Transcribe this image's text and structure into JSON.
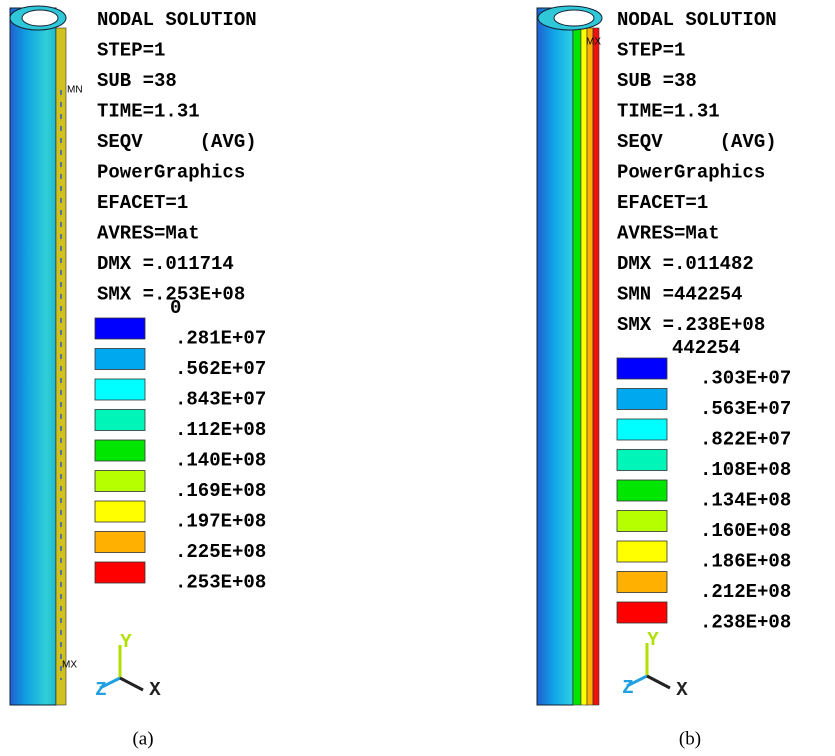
{
  "panels": [
    {
      "caption": "(a)",
      "info": [
        "NODAL SOLUTION",
        "STEP=1",
        "SUB =38",
        "TIME=1.31",
        "SEQV     (AVG)",
        "PowerGraphics",
        "EFACET=1",
        "AVRES=Mat",
        "DMX =.011714",
        "SMX =.253E+08"
      ],
      "legend_labels": [
        "0",
        ".281E+07",
        ".562E+07",
        ".843E+07",
        ".112E+08",
        ".140E+08",
        ".169E+08",
        ".197E+08",
        ".225E+08",
        ".253E+08"
      ],
      "legend_colors": [
        "#0000ff",
        "#00a8f0",
        "#00ffff",
        "#00f5b8",
        "#00e600",
        "#b5ff00",
        "#ffff00",
        "#ffb000",
        "#ff0000"
      ],
      "annotations": [
        "MN",
        "MX"
      ],
      "axes": [
        "Y",
        "Z",
        "X"
      ]
    },
    {
      "caption": "(b)",
      "info": [
        "NODAL SOLUTION",
        "STEP=1",
        "SUB =38",
        "TIME=1.31",
        "SEQV     (AVG)",
        "PowerGraphics",
        "EFACET=1",
        "AVRES=Mat",
        "DMX =.011482",
        "SMN =442254",
        "SMX =.238E+08"
      ],
      "legend_labels": [
        "442254",
        ".303E+07",
        ".563E+07",
        ".822E+07",
        ".108E+08",
        ".134E+08",
        ".160E+08",
        ".186E+08",
        ".212E+08",
        ".238E+08"
      ],
      "legend_colors": [
        "#0000ff",
        "#00a8f0",
        "#00ffff",
        "#00f5b8",
        "#00e600",
        "#b5ff00",
        "#ffff00",
        "#ffb000",
        "#ff0000"
      ],
      "annotations": [
        "MX"
      ],
      "axes": [
        "Y",
        "Z",
        "X"
      ]
    }
  ]
}
